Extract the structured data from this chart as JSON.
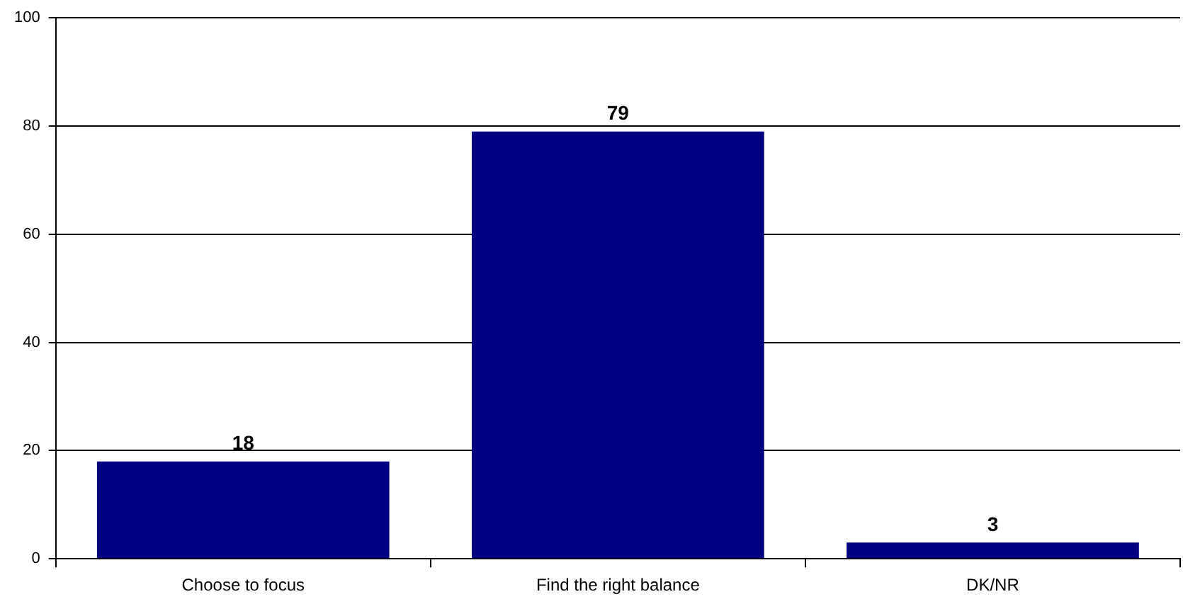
{
  "chart_data": {
    "type": "bar",
    "categories": [
      "Choose to focus",
      "Find the right balance",
      "DK/NR"
    ],
    "values": [
      18,
      79,
      3
    ],
    "color": "#000080",
    "ylim": [
      0,
      100
    ],
    "yticks": [
      0,
      20,
      40,
      60,
      80,
      100
    ],
    "grid": "y",
    "data_labels": true,
    "legend": false
  }
}
